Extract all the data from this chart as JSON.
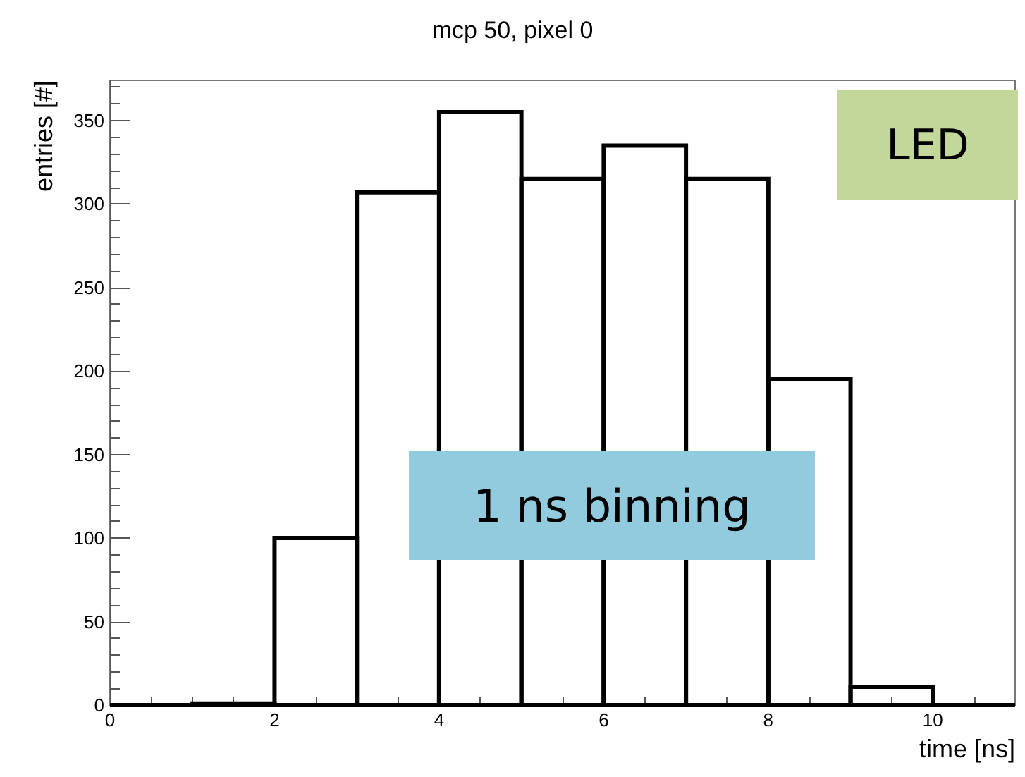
{
  "chart_data": {
    "type": "histogram",
    "title": "mcp 50, pixel 0",
    "xlabel": "time [ns]",
    "ylabel": "entries [#]",
    "bins": [
      0,
      1,
      2,
      3,
      4,
      5,
      6,
      7,
      8,
      9,
      10,
      11
    ],
    "values": [
      0,
      1,
      100,
      307,
      355,
      315,
      335,
      315,
      195,
      11,
      0
    ],
    "color": "#000000",
    "xlim": [
      0,
      11
    ],
    "xticks": [
      0,
      2,
      4,
      6,
      8,
      10
    ],
    "ylim": [
      0,
      374
    ],
    "yticks": [
      0,
      50,
      100,
      150,
      200,
      250,
      300,
      350
    ],
    "grid": false,
    "annotations": [
      "LED",
      "1 ns binning"
    ]
  }
}
